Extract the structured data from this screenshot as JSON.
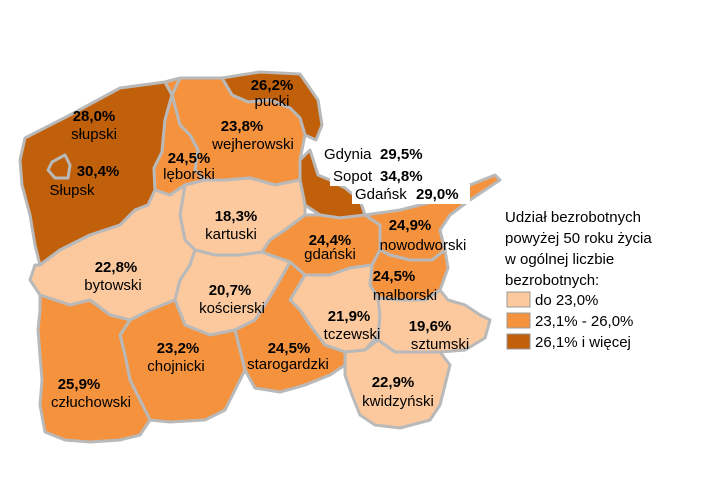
{
  "colors": {
    "low": "#fbc99d",
    "mid": "#f5923e",
    "high": "#c0600b",
    "border": "#b9b9b9"
  },
  "regions": {
    "slupski": {
      "name": "słupski",
      "value": "28,0%"
    },
    "slupsk": {
      "name": "Słupsk",
      "value": "30,4%"
    },
    "pucki": {
      "name": "pucki",
      "value": "26,2%"
    },
    "wejherowski": {
      "name": "wejherowski",
      "value": "23,8%"
    },
    "leborski": {
      "name": "lęborski",
      "value": "24,5%"
    },
    "kartuski": {
      "name": "kartuski",
      "value": "18,3%"
    },
    "gdanski": {
      "name": "gdański",
      "value": "24,4%"
    },
    "nowodworski": {
      "name": "nowodworski",
      "value": "24,9%"
    },
    "bytowski": {
      "name": "bytowski",
      "value": "22,8%"
    },
    "koscierski": {
      "name": "kościerski",
      "value": "20,7%"
    },
    "malborski": {
      "name": "malborski",
      "value": "24,5%"
    },
    "tczewski": {
      "name": "tczewski",
      "value": "21,9%"
    },
    "sztumski": {
      "name": "sztumski",
      "value": "19,6%"
    },
    "starogardzki": {
      "name": "starogardzki",
      "value": "24,5%"
    },
    "chojnicki": {
      "name": "chojnicki",
      "value": "23,2%"
    },
    "czluchowski": {
      "name": "człuchowski",
      "value": "25,9%"
    },
    "kwidzynski": {
      "name": "kwidzyński",
      "value": "22,9%"
    }
  },
  "cities": {
    "gdynia": {
      "name": "Gdynia",
      "value": "29,5%"
    },
    "sopot": {
      "name": "Sopot",
      "value": "34,8%"
    },
    "gdansk": {
      "name": "Gdańsk",
      "value": "29,0%"
    }
  },
  "legend": {
    "title_lines": [
      "Udział bezrobotnych",
      "powyżej 50 roku życia",
      "w ogólnej liczbie",
      "bezrobotnych:"
    ],
    "items": [
      {
        "label": "do 23,0%",
        "color": "#fbc99d"
      },
      {
        "label": "23,1% - 26,0%",
        "color": "#f5923e"
      },
      {
        "label": "26,1% i więcej",
        "color": "#c0600b"
      }
    ]
  }
}
